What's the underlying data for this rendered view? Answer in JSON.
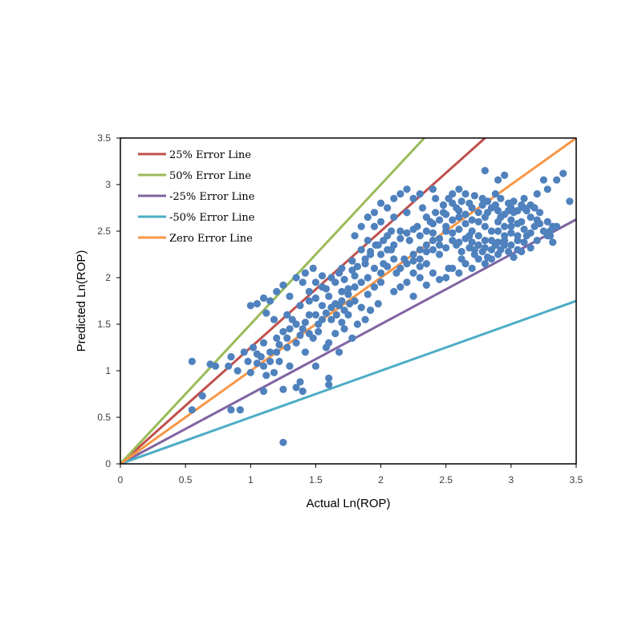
{
  "chart_data": {
    "type": "scatter",
    "xlabel": "Actual Ln(ROP)",
    "ylabel": "Predicted Ln(ROP)",
    "xlim": [
      0,
      3.5
    ],
    "ylim": [
      0,
      3.5
    ],
    "x_ticks": [
      "0",
      "0.5",
      "1",
      "1.5",
      "2",
      "2.5",
      "3",
      "3.5"
    ],
    "y_ticks": [
      "0",
      "0.5",
      "1",
      "1.5",
      "2",
      "2.5",
      "3",
      "3.5"
    ],
    "grid": false,
    "legend_position": "top-left",
    "points_color": "#4f81bd",
    "lines": [
      {
        "name": "25% Error Line",
        "slope": 1.25,
        "color": "#c0504d"
      },
      {
        "name": "50% Error Line",
        "slope": 1.5,
        "color": "#9bbb59"
      },
      {
        "name": "-25% Error Line",
        "slope": 0.75,
        "color": "#8064a2"
      },
      {
        "name": "-50% Error Line",
        "slope": 0.5,
        "color": "#4bacc6"
      },
      {
        "name": "Zero Error Line",
        "slope": 1.0,
        "color": "#f79646"
      }
    ],
    "scatter_points": [
      [
        0.55,
        1.1
      ],
      [
        0.55,
        0.58
      ],
      [
        0.63,
        0.73
      ],
      [
        0.69,
        1.07
      ],
      [
        0.73,
        1.05
      ],
      [
        0.83,
        1.05
      ],
      [
        0.85,
        0.58
      ],
      [
        0.92,
        0.58
      ],
      [
        1.25,
        0.23
      ],
      [
        0.85,
        1.15
      ],
      [
        0.9,
        1.0
      ],
      [
        0.95,
        1.2
      ],
      [
        0.98,
        1.1
      ],
      [
        1.0,
        0.98
      ],
      [
        1.02,
        1.25
      ],
      [
        1.05,
        1.08
      ],
      [
        1.08,
        1.15
      ],
      [
        1.1,
        1.3
      ],
      [
        1.12,
        0.95
      ],
      [
        1.15,
        1.2
      ],
      [
        1.18,
        0.98
      ],
      [
        1.2,
        1.35
      ],
      [
        1.22,
        1.1
      ],
      [
        1.25,
        1.42
      ],
      [
        1.28,
        1.25
      ],
      [
        1.3,
        1.05
      ],
      [
        1.32,
        1.55
      ],
      [
        1.35,
        1.3
      ],
      [
        1.38,
        0.88
      ],
      [
        1.4,
        1.45
      ],
      [
        1.42,
        1.2
      ],
      [
        1.45,
        1.6
      ],
      [
        1.48,
        1.35
      ],
      [
        1.5,
        1.05
      ],
      [
        1.52,
        1.5
      ],
      [
        1.55,
        1.7
      ],
      [
        1.58,
        1.25
      ],
      [
        1.6,
        0.92
      ],
      [
        1.62,
        1.55
      ],
      [
        1.6,
        0.85
      ],
      [
        1.4,
        0.78
      ],
      [
        1.35,
        0.82
      ],
      [
        1.1,
        0.78
      ],
      [
        1.25,
        0.8
      ],
      [
        1.05,
        1.72
      ],
      [
        1.1,
        1.78
      ],
      [
        1.15,
        1.75
      ],
      [
        1.2,
        1.85
      ],
      [
        1.25,
        1.92
      ],
      [
        1.3,
        1.8
      ],
      [
        1.35,
        2.0
      ],
      [
        1.38,
        1.7
      ],
      [
        1.4,
        1.95
      ],
      [
        1.42,
        2.05
      ],
      [
        1.45,
        1.85
      ],
      [
        1.48,
        2.1
      ],
      [
        1.5,
        1.78
      ],
      [
        1.55,
        2.02
      ],
      [
        1.58,
        1.88
      ],
      [
        1.0,
        1.7
      ],
      [
        1.12,
        1.62
      ],
      [
        1.18,
        1.55
      ],
      [
        1.28,
        1.6
      ],
      [
        1.6,
        1.3
      ],
      [
        1.65,
        1.4
      ],
      [
        1.68,
        1.2
      ],
      [
        1.7,
        1.52
      ],
      [
        1.72,
        1.45
      ],
      [
        1.75,
        1.6
      ],
      [
        1.78,
        1.35
      ],
      [
        1.8,
        1.75
      ],
      [
        1.82,
        1.5
      ],
      [
        1.85,
        1.68
      ],
      [
        1.88,
        1.55
      ],
      [
        1.9,
        1.82
      ],
      [
        1.92,
        1.65
      ],
      [
        1.95,
        1.9
      ],
      [
        1.98,
        1.72
      ],
      [
        2.0,
        1.95
      ],
      [
        1.65,
        1.95
      ],
      [
        1.7,
        2.1
      ],
      [
        1.75,
        1.88
      ],
      [
        1.78,
        2.18
      ],
      [
        1.8,
        2.02
      ],
      [
        1.85,
        2.3
      ],
      [
        1.88,
        2.15
      ],
      [
        1.9,
        2.4
      ],
      [
        1.92,
        2.25
      ],
      [
        1.95,
        2.55
      ],
      [
        1.98,
        2.35
      ],
      [
        2.0,
        2.6
      ],
      [
        2.02,
        2.15
      ],
      [
        2.05,
        2.45
      ],
      [
        2.08,
        2.3
      ],
      [
        2.1,
        2.65
      ],
      [
        2.12,
        2.05
      ],
      [
        2.15,
        2.5
      ],
      [
        2.18,
        2.2
      ],
      [
        2.2,
        2.7
      ],
      [
        2.22,
        2.4
      ],
      [
        2.25,
        2.05
      ],
      [
        2.28,
        2.55
      ],
      [
        2.3,
        2.3
      ],
      [
        2.32,
        2.75
      ],
      [
        2.35,
        2.15
      ],
      [
        2.38,
        2.6
      ],
      [
        2.4,
        2.4
      ],
      [
        2.42,
        2.85
      ],
      [
        2.45,
        2.25
      ],
      [
        2.48,
        2.7
      ],
      [
        2.5,
        2.5
      ],
      [
        2.52,
        2.1
      ],
      [
        2.55,
        2.8
      ],
      [
        2.58,
        2.35
      ],
      [
        2.6,
        2.65
      ],
      [
        2.62,
        2.2
      ],
      [
        2.65,
        2.9
      ],
      [
        2.68,
        2.45
      ],
      [
        2.7,
        2.75
      ],
      [
        2.72,
        2.3
      ],
      [
        2.75,
        2.6
      ],
      [
        2.78,
        2.85
      ],
      [
        2.8,
        2.4
      ],
      [
        2.82,
        2.7
      ],
      [
        2.85,
        2.2
      ],
      [
        2.88,
        2.9
      ],
      [
        2.9,
        2.5
      ],
      [
        2.92,
        2.65
      ],
      [
        2.95,
        2.35
      ],
      [
        2.98,
        2.8
      ],
      [
        3.0,
        2.55
      ],
      [
        3.02,
        2.7
      ],
      [
        3.05,
        2.3
      ],
      [
        3.08,
        2.6
      ],
      [
        3.1,
        2.85
      ],
      [
        3.12,
        2.45
      ],
      [
        3.15,
        2.65
      ],
      [
        3.18,
        2.55
      ],
      [
        3.2,
        2.4
      ],
      [
        3.22,
        2.7
      ],
      [
        3.25,
        2.5
      ],
      [
        3.28,
        2.6
      ],
      [
        3.3,
        2.45
      ],
      [
        3.32,
        2.55
      ],
      [
        3.2,
        2.9
      ],
      [
        3.25,
        3.05
      ],
      [
        3.28,
        2.95
      ],
      [
        3.35,
        2.55
      ],
      [
        3.3,
        2.5
      ],
      [
        2.8,
        3.15
      ],
      [
        2.9,
        3.05
      ],
      [
        2.95,
        3.1
      ],
      [
        3.35,
        3.05
      ],
      [
        3.4,
        3.12
      ],
      [
        3.45,
        2.82
      ],
      [
        2.6,
        2.95
      ],
      [
        2.55,
        2.9
      ],
      [
        2.3,
        2.9
      ],
      [
        2.4,
        2.95
      ],
      [
        1.9,
        2.65
      ],
      [
        1.95,
        2.7
      ],
      [
        2.0,
        2.8
      ],
      [
        2.05,
        2.75
      ],
      [
        2.1,
        2.85
      ],
      [
        1.85,
        2.55
      ],
      [
        1.8,
        2.45
      ],
      [
        2.15,
        2.9
      ],
      [
        2.2,
        2.95
      ],
      [
        2.25,
        2.85
      ],
      [
        2.1,
        1.85
      ],
      [
        2.15,
        1.9
      ],
      [
        2.2,
        1.95
      ],
      [
        2.25,
        1.8
      ],
      [
        2.3,
        2.0
      ],
      [
        2.35,
        1.92
      ],
      [
        2.4,
        2.05
      ],
      [
        2.45,
        1.98
      ],
      [
        2.5,
        2.0
      ],
      [
        2.55,
        2.1
      ],
      [
        2.6,
        2.05
      ],
      [
        2.65,
        2.15
      ],
      [
        2.7,
        2.1
      ],
      [
        2.75,
        2.2
      ],
      [
        2.8,
        2.15
      ],
      [
        2.85,
        2.3
      ],
      [
        2.9,
        2.25
      ],
      [
        2.95,
        2.4
      ],
      [
        3.0,
        2.35
      ],
      [
        3.05,
        2.45
      ],
      [
        2.35,
        2.35
      ],
      [
        2.4,
        2.48
      ],
      [
        2.45,
        2.42
      ],
      [
        2.5,
        2.55
      ],
      [
        2.55,
        2.48
      ],
      [
        2.6,
        2.52
      ],
      [
        2.65,
        2.58
      ],
      [
        2.7,
        2.5
      ],
      [
        2.75,
        2.45
      ],
      [
        2.8,
        2.55
      ],
      [
        2.85,
        2.5
      ],
      [
        2.9,
        2.6
      ],
      [
        2.95,
        2.55
      ],
      [
        3.0,
        2.62
      ],
      [
        3.05,
        2.58
      ],
      [
        3.1,
        2.52
      ],
      [
        3.15,
        2.48
      ],
      [
        2.25,
        2.25
      ],
      [
        2.3,
        2.2
      ],
      [
        2.35,
        2.28
      ],
      [
        2.4,
        2.3
      ],
      [
        2.45,
        2.35
      ],
      [
        2.5,
        2.32
      ],
      [
        2.55,
        2.4
      ],
      [
        2.6,
        2.38
      ],
      [
        2.65,
        2.42
      ],
      [
        2.7,
        2.38
      ],
      [
        2.75,
        2.35
      ],
      [
        2.8,
        2.32
      ],
      [
        2.85,
        2.4
      ],
      [
        2.9,
        2.38
      ],
      [
        2.95,
        2.45
      ],
      [
        3.0,
        2.48
      ],
      [
        3.05,
        2.4
      ],
      [
        3.1,
        2.38
      ],
      [
        3.15,
        2.32
      ],
      [
        2.0,
        2.05
      ],
      [
        2.05,
        2.12
      ],
      [
        2.1,
        2.2
      ],
      [
        2.15,
        2.1
      ],
      [
        2.2,
        2.15
      ],
      [
        2.25,
        2.18
      ],
      [
        2.3,
        2.12
      ],
      [
        2.0,
        2.25
      ],
      [
        2.05,
        2.3
      ],
      [
        2.1,
        2.35
      ],
      [
        2.15,
        2.42
      ],
      [
        2.2,
        2.48
      ],
      [
        2.25,
        2.52
      ],
      [
        2.3,
        2.45
      ],
      [
        2.35,
        2.5
      ],
      [
        2.4,
        2.58
      ],
      [
        2.45,
        2.62
      ],
      [
        2.5,
        2.68
      ],
      [
        2.55,
        2.62
      ],
      [
        2.6,
        2.72
      ],
      [
        2.65,
        2.68
      ],
      [
        2.7,
        2.62
      ],
      [
        2.75,
        2.7
      ],
      [
        2.8,
        2.65
      ],
      [
        2.85,
        2.75
      ],
      [
        2.9,
        2.72
      ],
      [
        2.95,
        2.68
      ],
      [
        3.0,
        2.75
      ],
      [
        3.05,
        2.72
      ],
      [
        3.1,
        2.75
      ],
      [
        3.15,
        2.78
      ],
      [
        3.2,
        2.62
      ],
      [
        1.7,
        1.75
      ],
      [
        1.75,
        1.82
      ],
      [
        1.8,
        1.9
      ],
      [
        1.85,
        1.95
      ],
      [
        1.9,
        2.0
      ],
      [
        1.95,
        2.1
      ],
      [
        1.6,
        1.8
      ],
      [
        1.65,
        1.72
      ],
      [
        1.7,
        1.85
      ],
      [
        1.55,
        1.9
      ],
      [
        1.5,
        1.95
      ],
      [
        1.45,
        1.75
      ],
      [
        1.62,
        2.0
      ],
      [
        1.68,
        2.05
      ],
      [
        1.72,
        1.98
      ],
      [
        1.78,
        2.08
      ],
      [
        1.82,
        2.12
      ],
      [
        1.88,
        2.2
      ],
      [
        1.92,
        2.28
      ],
      [
        1.96,
        2.35
      ],
      [
        2.02,
        2.4
      ],
      [
        2.08,
        2.5
      ],
      [
        1.3,
        1.45
      ],
      [
        1.35,
        1.5
      ],
      [
        1.38,
        1.38
      ],
      [
        1.42,
        1.52
      ],
      [
        1.45,
        1.4
      ],
      [
        1.5,
        1.6
      ],
      [
        1.52,
        1.42
      ],
      [
        1.55,
        1.55
      ],
      [
        1.58,
        1.62
      ],
      [
        1.62,
        1.68
      ],
      [
        1.66,
        1.6
      ],
      [
        1.68,
        1.7
      ],
      [
        1.72,
        1.65
      ],
      [
        1.76,
        1.72
      ],
      [
        1.2,
        1.2
      ],
      [
        1.15,
        1.1
      ],
      [
        1.1,
        1.05
      ],
      [
        1.05,
        1.18
      ],
      [
        1.22,
        1.28
      ],
      [
        1.28,
        1.35
      ],
      [
        2.62,
        2.28
      ],
      [
        2.68,
        2.32
      ],
      [
        2.72,
        2.25
      ],
      [
        2.78,
        2.28
      ],
      [
        2.82,
        2.22
      ],
      [
        2.88,
        2.35
      ],
      [
        2.92,
        2.3
      ],
      [
        2.98,
        2.28
      ],
      [
        3.02,
        2.22
      ],
      [
        3.08,
        2.28
      ],
      [
        2.35,
        2.65
      ],
      [
        2.42,
        2.7
      ],
      [
        2.48,
        2.78
      ],
      [
        2.52,
        2.85
      ],
      [
        2.58,
        2.75
      ],
      [
        2.62,
        2.82
      ],
      [
        2.68,
        2.8
      ],
      [
        2.72,
        2.88
      ],
      [
        2.78,
        2.78
      ],
      [
        2.82,
        2.82
      ],
      [
        2.88,
        2.78
      ],
      [
        2.92,
        2.85
      ],
      [
        2.98,
        2.72
      ],
      [
        3.02,
        2.82
      ],
      [
        3.08,
        2.78
      ],
      [
        3.12,
        2.72
      ],
      [
        3.18,
        2.75
      ],
      [
        3.22,
        2.58
      ],
      [
        3.28,
        2.45
      ],
      [
        3.32,
        2.38
      ]
    ]
  }
}
